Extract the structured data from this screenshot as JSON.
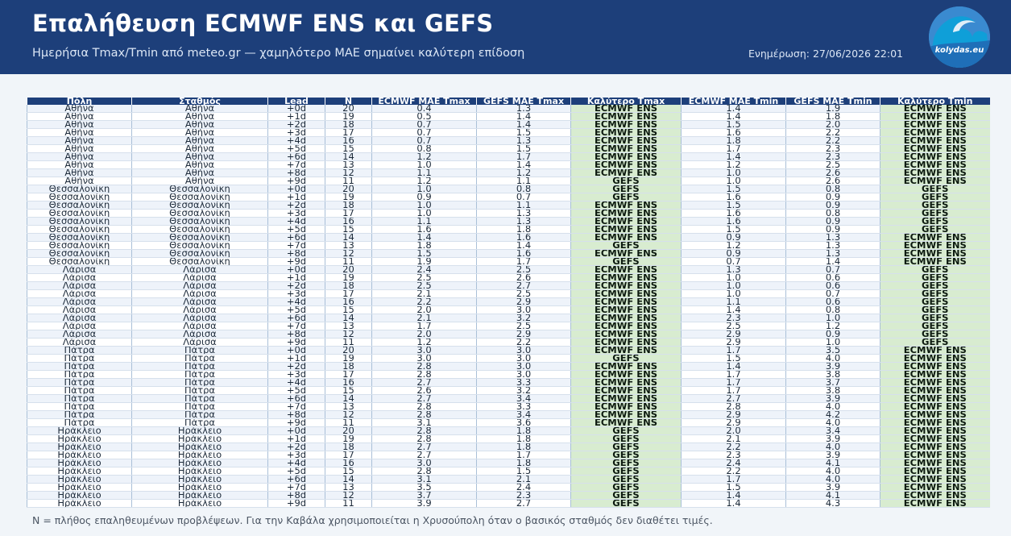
{
  "header": {
    "title": "Επαλήθευση ECMWF ENS και GEFS",
    "subtitle": "Ημερήσια Tmax/Tmin από meteo.gr — χαμηλότερο MAE σημαίνει καλύτερη επίδοση",
    "updated": "Ενημέρωση: 27/06/2026 22:01",
    "logo_text": "kolydas.eu"
  },
  "table": {
    "columns": [
      "Πόλη",
      "Σταθμός",
      "Lead",
      "N",
      "ECMWF MAE Tmax",
      "GEFS MAE Tmax",
      "Καλύτερο Tmax",
      "ECMWF MAE Tmin",
      "GEFS MAE Tmin",
      "Καλύτερο Tmin"
    ],
    "rows": [
      [
        "Αθήνα",
        "Αθήνα",
        "+0d",
        "20",
        "0.4",
        "1.3",
        "ECMWF ENS",
        "1.4",
        "1.9",
        "ECMWF ENS"
      ],
      [
        "Αθήνα",
        "Αθήνα",
        "+1d",
        "19",
        "0.5",
        "1.4",
        "ECMWF ENS",
        "1.4",
        "1.8",
        "ECMWF ENS"
      ],
      [
        "Αθήνα",
        "Αθήνα",
        "+2d",
        "18",
        "0.7",
        "1.4",
        "ECMWF ENS",
        "1.5",
        "2.0",
        "ECMWF ENS"
      ],
      [
        "Αθήνα",
        "Αθήνα",
        "+3d",
        "17",
        "0.7",
        "1.5",
        "ECMWF ENS",
        "1.6",
        "2.2",
        "ECMWF ENS"
      ],
      [
        "Αθήνα",
        "Αθήνα",
        "+4d",
        "16",
        "0.7",
        "1.3",
        "ECMWF ENS",
        "1.8",
        "2.2",
        "ECMWF ENS"
      ],
      [
        "Αθήνα",
        "Αθήνα",
        "+5d",
        "15",
        "0.8",
        "1.5",
        "ECMWF ENS",
        "1.7",
        "2.3",
        "ECMWF ENS"
      ],
      [
        "Αθήνα",
        "Αθήνα",
        "+6d",
        "14",
        "1.2",
        "1.7",
        "ECMWF ENS",
        "1.4",
        "2.3",
        "ECMWF ENS"
      ],
      [
        "Αθήνα",
        "Αθήνα",
        "+7d",
        "13",
        "1.0",
        "1.4",
        "ECMWF ENS",
        "1.2",
        "2.5",
        "ECMWF ENS"
      ],
      [
        "Αθήνα",
        "Αθήνα",
        "+8d",
        "12",
        "1.1",
        "1.2",
        "ECMWF ENS",
        "1.0",
        "2.6",
        "ECMWF ENS"
      ],
      [
        "Αθήνα",
        "Αθήνα",
        "+9d",
        "11",
        "1.2",
        "1.1",
        "GEFS",
        "1.0",
        "2.6",
        "ECMWF ENS"
      ],
      [
        "Θεσσαλονίκη",
        "Θεσσαλονίκη",
        "+0d",
        "20",
        "1.0",
        "0.8",
        "GEFS",
        "1.5",
        "0.8",
        "GEFS"
      ],
      [
        "Θεσσαλονίκη",
        "Θεσσαλονίκη",
        "+1d",
        "19",
        "0.9",
        "0.7",
        "GEFS",
        "1.6",
        "0.9",
        "GEFS"
      ],
      [
        "Θεσσαλονίκη",
        "Θεσσαλονίκη",
        "+2d",
        "18",
        "1.0",
        "1.1",
        "ECMWF ENS",
        "1.5",
        "0.9",
        "GEFS"
      ],
      [
        "Θεσσαλονίκη",
        "Θεσσαλονίκη",
        "+3d",
        "17",
        "1.0",
        "1.3",
        "ECMWF ENS",
        "1.6",
        "0.8",
        "GEFS"
      ],
      [
        "Θεσσαλονίκη",
        "Θεσσαλονίκη",
        "+4d",
        "16",
        "1.1",
        "1.3",
        "ECMWF ENS",
        "1.6",
        "0.9",
        "GEFS"
      ],
      [
        "Θεσσαλονίκη",
        "Θεσσαλονίκη",
        "+5d",
        "15",
        "1.6",
        "1.8",
        "ECMWF ENS",
        "1.5",
        "0.9",
        "GEFS"
      ],
      [
        "Θεσσαλονίκη",
        "Θεσσαλονίκη",
        "+6d",
        "14",
        "1.4",
        "1.6",
        "ECMWF ENS",
        "0.9",
        "1.3",
        "ECMWF ENS"
      ],
      [
        "Θεσσαλονίκη",
        "Θεσσαλονίκη",
        "+7d",
        "13",
        "1.8",
        "1.4",
        "GEFS",
        "1.2",
        "1.3",
        "ECMWF ENS"
      ],
      [
        "Θεσσαλονίκη",
        "Θεσσαλονίκη",
        "+8d",
        "12",
        "1.5",
        "1.6",
        "ECMWF ENS",
        "0.9",
        "1.3",
        "ECMWF ENS"
      ],
      [
        "Θεσσαλονίκη",
        "Θεσσαλονίκη",
        "+9d",
        "11",
        "1.9",
        "1.7",
        "GEFS",
        "0.7",
        "1.4",
        "ECMWF ENS"
      ],
      [
        "Λάρισα",
        "Λάρισα",
        "+0d",
        "20",
        "2.4",
        "2.5",
        "ECMWF ENS",
        "1.3",
        "0.7",
        "GEFS"
      ],
      [
        "Λάρισα",
        "Λάρισα",
        "+1d",
        "19",
        "2.5",
        "2.6",
        "ECMWF ENS",
        "1.0",
        "0.6",
        "GEFS"
      ],
      [
        "Λάρισα",
        "Λάρισα",
        "+2d",
        "18",
        "2.5",
        "2.7",
        "ECMWF ENS",
        "1.0",
        "0.6",
        "GEFS"
      ],
      [
        "Λάρισα",
        "Λάρισα",
        "+3d",
        "17",
        "2.1",
        "2.5",
        "ECMWF ENS",
        "1.0",
        "0.7",
        "GEFS"
      ],
      [
        "Λάρισα",
        "Λάρισα",
        "+4d",
        "16",
        "2.2",
        "2.9",
        "ECMWF ENS",
        "1.1",
        "0.6",
        "GEFS"
      ],
      [
        "Λάρισα",
        "Λάρισα",
        "+5d",
        "15",
        "2.0",
        "3.0",
        "ECMWF ENS",
        "1.4",
        "0.8",
        "GEFS"
      ],
      [
        "Λάρισα",
        "Λάρισα",
        "+6d",
        "14",
        "2.1",
        "3.2",
        "ECMWF ENS",
        "2.3",
        "1.0",
        "GEFS"
      ],
      [
        "Λάρισα",
        "Λάρισα",
        "+7d",
        "13",
        "1.7",
        "2.5",
        "ECMWF ENS",
        "2.5",
        "1.2",
        "GEFS"
      ],
      [
        "Λάρισα",
        "Λάρισα",
        "+8d",
        "12",
        "2.0",
        "2.9",
        "ECMWF ENS",
        "2.9",
        "0.9",
        "GEFS"
      ],
      [
        "Λάρισα",
        "Λάρισα",
        "+9d",
        "11",
        "1.2",
        "2.2",
        "ECMWF ENS",
        "2.9",
        "1.0",
        "GEFS"
      ],
      [
        "Πάτρα",
        "Πάτρα",
        "+0d",
        "20",
        "3.0",
        "3.0",
        "ECMWF ENS",
        "1.7",
        "3.5",
        "ECMWF ENS"
      ],
      [
        "Πάτρα",
        "Πάτρα",
        "+1d",
        "19",
        "3.0",
        "3.0",
        "GEFS",
        "1.5",
        "4.0",
        "ECMWF ENS"
      ],
      [
        "Πάτρα",
        "Πάτρα",
        "+2d",
        "18",
        "2.8",
        "3.0",
        "ECMWF ENS",
        "1.4",
        "3.9",
        "ECMWF ENS"
      ],
      [
        "Πάτρα",
        "Πάτρα",
        "+3d",
        "17",
        "2.8",
        "3.0",
        "ECMWF ENS",
        "1.7",
        "3.8",
        "ECMWF ENS"
      ],
      [
        "Πάτρα",
        "Πάτρα",
        "+4d",
        "16",
        "2.7",
        "3.3",
        "ECMWF ENS",
        "1.7",
        "3.7",
        "ECMWF ENS"
      ],
      [
        "Πάτρα",
        "Πάτρα",
        "+5d",
        "15",
        "2.6",
        "3.2",
        "ECMWF ENS",
        "1.7",
        "3.8",
        "ECMWF ENS"
      ],
      [
        "Πάτρα",
        "Πάτρα",
        "+6d",
        "14",
        "2.7",
        "3.4",
        "ECMWF ENS",
        "2.7",
        "3.9",
        "ECMWF ENS"
      ],
      [
        "Πάτρα",
        "Πάτρα",
        "+7d",
        "13",
        "2.8",
        "3.3",
        "ECMWF ENS",
        "2.8",
        "4.0",
        "ECMWF ENS"
      ],
      [
        "Πάτρα",
        "Πάτρα",
        "+8d",
        "12",
        "2.8",
        "3.4",
        "ECMWF ENS",
        "2.9",
        "4.2",
        "ECMWF ENS"
      ],
      [
        "Πάτρα",
        "Πάτρα",
        "+9d",
        "11",
        "3.1",
        "3.6",
        "ECMWF ENS",
        "2.9",
        "4.0",
        "ECMWF ENS"
      ],
      [
        "Ηράκλειο",
        "Ηράκλειο",
        "+0d",
        "20",
        "2.8",
        "1.8",
        "GEFS",
        "2.0",
        "3.4",
        "ECMWF ENS"
      ],
      [
        "Ηράκλειο",
        "Ηράκλειο",
        "+1d",
        "19",
        "2.8",
        "1.8",
        "GEFS",
        "2.1",
        "3.9",
        "ECMWF ENS"
      ],
      [
        "Ηράκλειο",
        "Ηράκλειο",
        "+2d",
        "18",
        "2.7",
        "1.8",
        "GEFS",
        "2.2",
        "4.0",
        "ECMWF ENS"
      ],
      [
        "Ηράκλειο",
        "Ηράκλειο",
        "+3d",
        "17",
        "2.7",
        "1.7",
        "GEFS",
        "2.3",
        "3.9",
        "ECMWF ENS"
      ],
      [
        "Ηράκλειο",
        "Ηράκλειο",
        "+4d",
        "16",
        "3.0",
        "1.8",
        "GEFS",
        "2.4",
        "4.1",
        "ECMWF ENS"
      ],
      [
        "Ηράκλειο",
        "Ηράκλειο",
        "+5d",
        "15",
        "2.8",
        "1.5",
        "GEFS",
        "2.2",
        "4.0",
        "ECMWF ENS"
      ],
      [
        "Ηράκλειο",
        "Ηράκλειο",
        "+6d",
        "14",
        "3.1",
        "2.1",
        "GEFS",
        "1.7",
        "4.0",
        "ECMWF ENS"
      ],
      [
        "Ηράκλειο",
        "Ηράκλειο",
        "+7d",
        "13",
        "3.5",
        "2.4",
        "GEFS",
        "1.5",
        "3.9",
        "ECMWF ENS"
      ],
      [
        "Ηράκλειο",
        "Ηράκλειο",
        "+8d",
        "12",
        "3.7",
        "2.3",
        "GEFS",
        "1.4",
        "4.1",
        "ECMWF ENS"
      ],
      [
        "Ηράκλειο",
        "Ηράκλειο",
        "+9d",
        "11",
        "3.9",
        "2.7",
        "GEFS",
        "1.4",
        "4.3",
        "ECMWF ENS"
      ]
    ]
  },
  "footnote": "N = πλήθος επαληθευμένων προβλέψεων. Για την Καβάλα χρησιμοποιείται η Χρυσούπολη όταν ο βασικός σταθμός δεν διαθέτει τιμές.",
  "colors": {
    "header_bg": "#1d3f7a",
    "best_cell": "#d8ecd0"
  }
}
